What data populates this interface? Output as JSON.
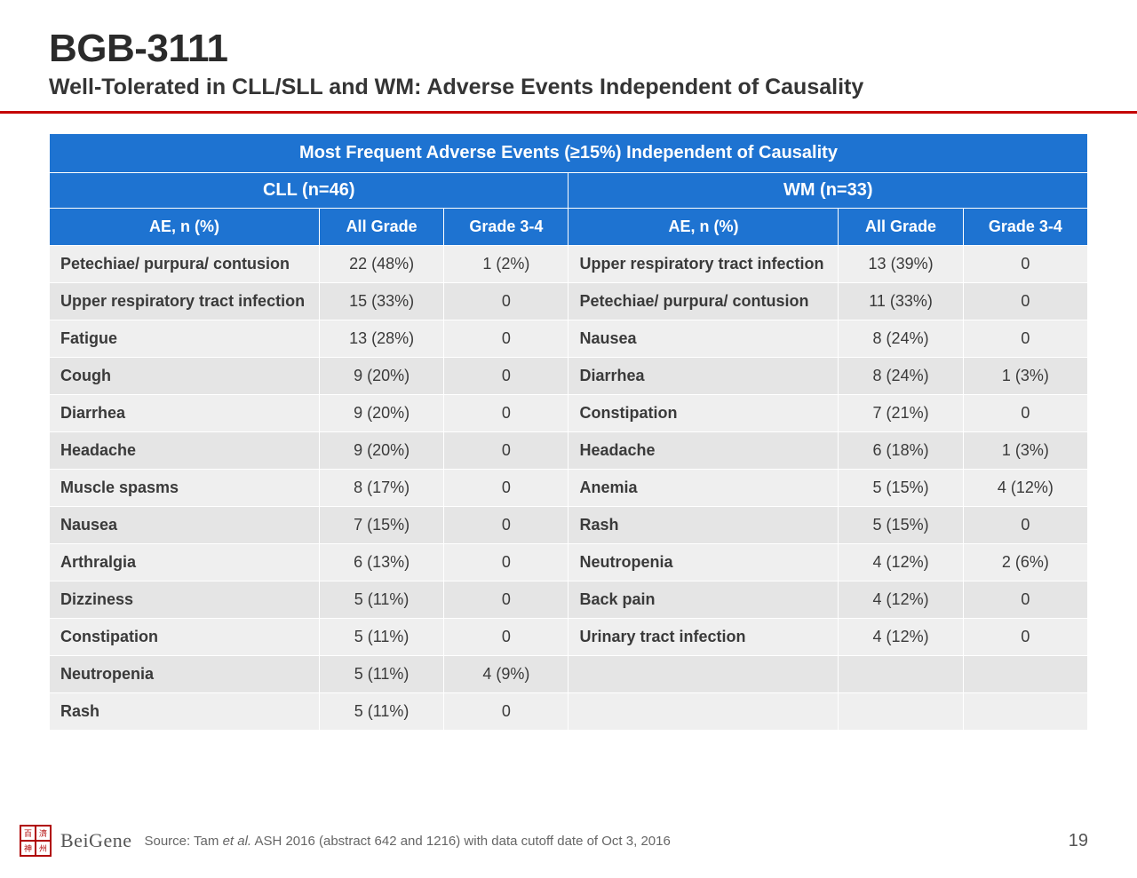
{
  "colors": {
    "header_bg": "#1e73d1",
    "header_text": "#ffffff",
    "row_odd": "#efefef",
    "row_even": "#e5e5e5",
    "rule": "#c40000",
    "text": "#3a3a3a"
  },
  "fonts": {
    "title_pt": 44,
    "subtitle_pt": 25,
    "header_pt": 20,
    "body_pt": 18
  },
  "title": "BGB-3111",
  "subtitle": "Well-Tolerated in CLL/SLL and WM: Adverse Events Independent of Causality",
  "table": {
    "top_header": "Most Frequent Adverse Events (≥15%) Independent of Causality",
    "group_left": "CLL (n=46)",
    "group_right": "WM (n=33)",
    "col_ae": "AE, n (%)",
    "col_all": "All Grade",
    "col_g34": "Grade 3-4",
    "rows": [
      {
        "l_ae": "Petechiae/ purpura/ contusion",
        "l_all": "22 (48%)",
        "l_g34": "1 (2%)",
        "r_ae": "Upper respiratory tract infection",
        "r_all": "13 (39%)",
        "r_g34": "0"
      },
      {
        "l_ae": "Upper respiratory tract infection",
        "l_all": "15 (33%)",
        "l_g34": "0",
        "r_ae": "Petechiae/ purpura/ contusion",
        "r_all": "11 (33%)",
        "r_g34": "0"
      },
      {
        "l_ae": "Fatigue",
        "l_all": "13 (28%)",
        "l_g34": "0",
        "r_ae": "Nausea",
        "r_all": "8 (24%)",
        "r_g34": "0"
      },
      {
        "l_ae": "Cough",
        "l_all": "9 (20%)",
        "l_g34": "0",
        "r_ae": "Diarrhea",
        "r_all": "8 (24%)",
        "r_g34": "1 (3%)"
      },
      {
        "l_ae": "Diarrhea",
        "l_all": "9 (20%)",
        "l_g34": "0",
        "r_ae": "Constipation",
        "r_all": "7 (21%)",
        "r_g34": "0"
      },
      {
        "l_ae": "Headache",
        "l_all": "9 (20%)",
        "l_g34": "0",
        "r_ae": "Headache",
        "r_all": "6 (18%)",
        "r_g34": "1 (3%)"
      },
      {
        "l_ae": "Muscle spasms",
        "l_all": "8 (17%)",
        "l_g34": "0",
        "r_ae": "Anemia",
        "r_all": "5 (15%)",
        "r_g34": "4 (12%)"
      },
      {
        "l_ae": "Nausea",
        "l_all": "7 (15%)",
        "l_g34": "0",
        "r_ae": "Rash",
        "r_all": "5 (15%)",
        "r_g34": "0"
      },
      {
        "l_ae": "Arthralgia",
        "l_all": "6 (13%)",
        "l_g34": "0",
        "r_ae": "Neutropenia",
        "r_all": "4 (12%)",
        "r_g34": "2 (6%)"
      },
      {
        "l_ae": "Dizziness",
        "l_all": "5 (11%)",
        "l_g34": "0",
        "r_ae": "Back pain",
        "r_all": "4 (12%)",
        "r_g34": "0"
      },
      {
        "l_ae": "Constipation",
        "l_all": "5 (11%)",
        "l_g34": "0",
        "r_ae": "Urinary tract infection",
        "r_all": "4 (12%)",
        "r_g34": "0"
      },
      {
        "l_ae": "Neutropenia",
        "l_all": "5 (11%)",
        "l_g34": "4 (9%)",
        "r_ae": "",
        "r_all": "",
        "r_g34": ""
      },
      {
        "l_ae": "Rash",
        "l_all": "5 (11%)",
        "l_g34": "0",
        "r_ae": "",
        "r_all": "",
        "r_g34": ""
      }
    ]
  },
  "footer": {
    "company": "BeiGene",
    "source_pre": "Source: Tam ",
    "source_it": "et al.",
    "source_post": " ASH 2016 (abstract 642 and 1216) with data cutoff date of Oct 3, 2016",
    "page": "19"
  }
}
